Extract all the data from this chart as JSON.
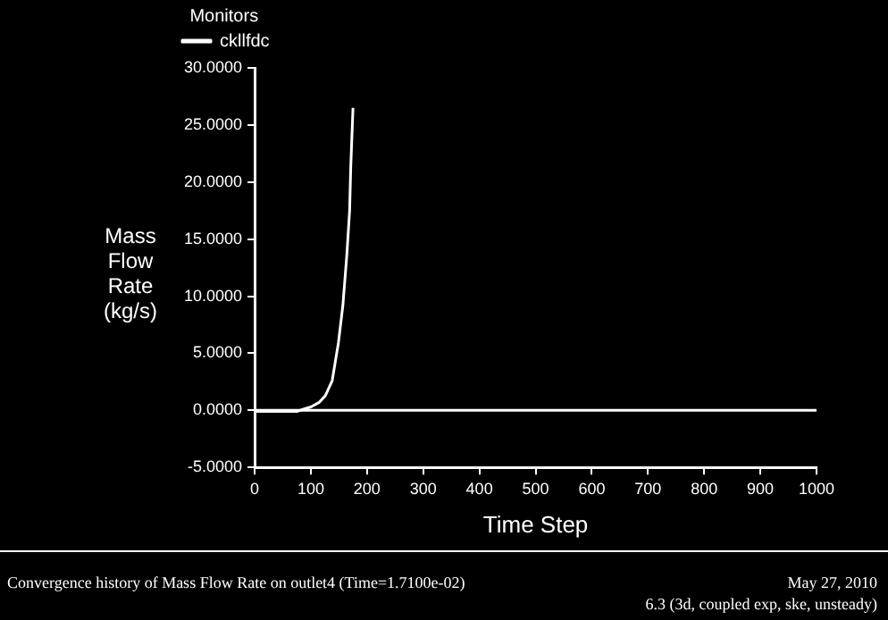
{
  "chart_data": {
    "type": "line",
    "xlabel": "Time Step",
    "ylabel": "Mass Flow Rate (kg/s)",
    "legend_title": "Monitors",
    "legend": "top left",
    "grid": false,
    "marker": "none",
    "line_style": "solid",
    "series": [
      {
        "name": "ckllfdc",
        "color": "#ffffff",
        "x": [
          0,
          40,
          75,
          87,
          100,
          115,
          126,
          138,
          149,
          157,
          164,
          169,
          171,
          175
        ],
        "values": [
          -0.1,
          -0.1,
          -0.1,
          0.1,
          0.3,
          0.7,
          1.3,
          2.6,
          5.9,
          9.2,
          13.6,
          17.5,
          21.3,
          26.5
        ]
      }
    ],
    "ref_lines": [
      {
        "axis": "y",
        "value": 0,
        "color": "#ffffff"
      }
    ],
    "xlim": [
      0,
      1000
    ],
    "xticks": [
      0,
      100,
      200,
      300,
      400,
      500,
      600,
      700,
      800,
      900,
      1000
    ],
    "ylim": [
      -5,
      30
    ],
    "yticks": [
      {
        "value": -5,
        "label": "-5.0000"
      },
      {
        "value": 0,
        "label": "0.0000"
      },
      {
        "value": 5,
        "label": "5.0000"
      },
      {
        "value": 10,
        "label": "10.0000"
      },
      {
        "value": 15,
        "label": "15.0000"
      },
      {
        "value": 20,
        "label": "20.0000"
      },
      {
        "value": 25,
        "label": "25.0000"
      },
      {
        "value": 30,
        "label": "30.0000"
      }
    ],
    "annotations": [
      "Convergence history of Mass Flow Rate on outlet4  (Time=1.7100e-02)",
      "May 27, 2010",
      "6.3 (3d, coupled exp, ske, unsteady)"
    ]
  }
}
